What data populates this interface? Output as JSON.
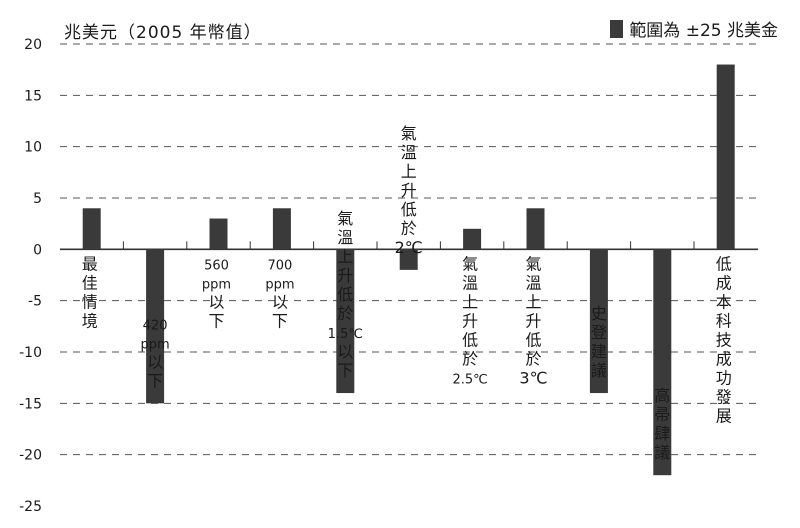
{
  "unit_label": "兆美元（2005 年幣值）",
  "legend_label": "範圍為 ±25 兆美金",
  "colors": {
    "bar": "#3a3a3a",
    "axis": "#333333",
    "grid": "#555555",
    "text": "#1a1a1a"
  },
  "chart_data": {
    "type": "bar",
    "ylim": [
      -25,
      20
    ],
    "yticks": [
      -25,
      -20,
      -15,
      -10,
      -5,
      0,
      5,
      10,
      15,
      20
    ],
    "grid": "dashed-horizontal",
    "categories": [
      "最佳情境",
      "420 ppm 以下",
      "560 ppm 以下",
      "700 ppm 以下",
      "氣溫上升低於 1.5℃ 以下",
      "氣溫上升低於 2℃",
      "氣溫上升低於 2.5℃",
      "氣溫上升低於 3℃",
      "史登建議",
      "高帚肆議",
      "低成本科技成功發展"
    ],
    "category_lines": [
      [
        "最",
        "佳",
        "情",
        "境"
      ],
      [
        "420",
        "ppm",
        "以",
        "下"
      ],
      [
        "560",
        "ppm",
        "以",
        "下"
      ],
      [
        "700",
        "ppm",
        "以",
        "下"
      ],
      [
        "氣",
        "溫",
        "上",
        "升",
        "低",
        "於",
        "1.5℃",
        "以",
        "下"
      ],
      [
        "氣",
        "溫",
        "上",
        "升",
        "低",
        "於",
        "2℃"
      ],
      [
        "氣",
        "溫",
        "上",
        "升",
        "低",
        "於",
        "2.5℃"
      ],
      [
        "氣",
        "溫",
        "上",
        "升",
        "低",
        "於",
        "3℃"
      ],
      [
        "史",
        "登",
        "建",
        "議"
      ],
      [
        "高",
        "帚",
        "肆",
        "議"
      ],
      [
        "低",
        "成",
        "本",
        "科",
        "技",
        "成",
        "功",
        "發",
        "展"
      ]
    ],
    "values": [
      4,
      -15,
      3,
      4,
      -14,
      -2,
      2,
      4,
      -14,
      -22,
      18
    ]
  }
}
